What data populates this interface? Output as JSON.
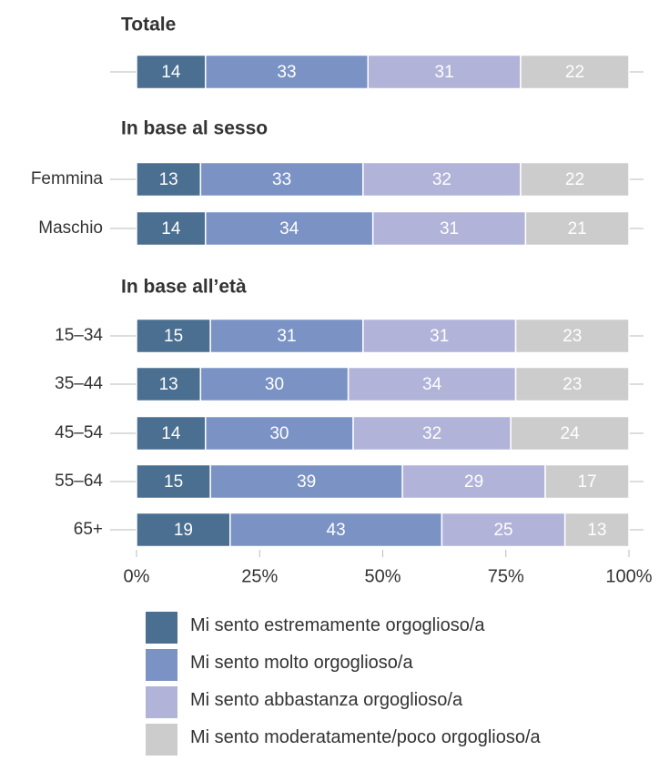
{
  "chart_data": {
    "type": "bar",
    "orientation": "horizontal",
    "stacked": true,
    "xlim": [
      0,
      100
    ],
    "x_ticks": [
      "0%",
      "25%",
      "50%",
      "75%",
      "100%"
    ],
    "grid": false,
    "legend_position": "bottom",
    "groups": [
      {
        "title": "Totale",
        "rows": [
          {
            "label": "",
            "values": [
              14,
              33,
              31,
              22
            ]
          }
        ]
      },
      {
        "title": "In base al sesso",
        "rows": [
          {
            "label": "Femmina",
            "values": [
              13,
              33,
              32,
              22
            ]
          },
          {
            "label": "Maschio",
            "values": [
              14,
              34,
              31,
              21
            ]
          }
        ]
      },
      {
        "title": "In base all’età",
        "rows": [
          {
            "label": "15–34",
            "values": [
              15,
              31,
              31,
              23
            ]
          },
          {
            "label": "35–44",
            "values": [
              13,
              30,
              34,
              23
            ]
          },
          {
            "label": "45–54",
            "values": [
              14,
              30,
              32,
              24
            ]
          },
          {
            "label": "55–64",
            "values": [
              15,
              39,
              29,
              17
            ]
          },
          {
            "label": "65+",
            "values": [
              19,
              43,
              25,
              13
            ]
          }
        ]
      }
    ],
    "series": [
      {
        "name": "Mi sento estremamente orgoglioso/a",
        "color": "#4b6f90"
      },
      {
        "name": "Mi sento molto orgoglioso/a",
        "color": "#7b93c4"
      },
      {
        "name": "Mi sento abbastanza orgoglioso/a",
        "color": "#b2b3d9"
      },
      {
        "name": "Mi sento moderatamente/poco orgoglioso/a",
        "color": "#cccccc"
      }
    ]
  }
}
